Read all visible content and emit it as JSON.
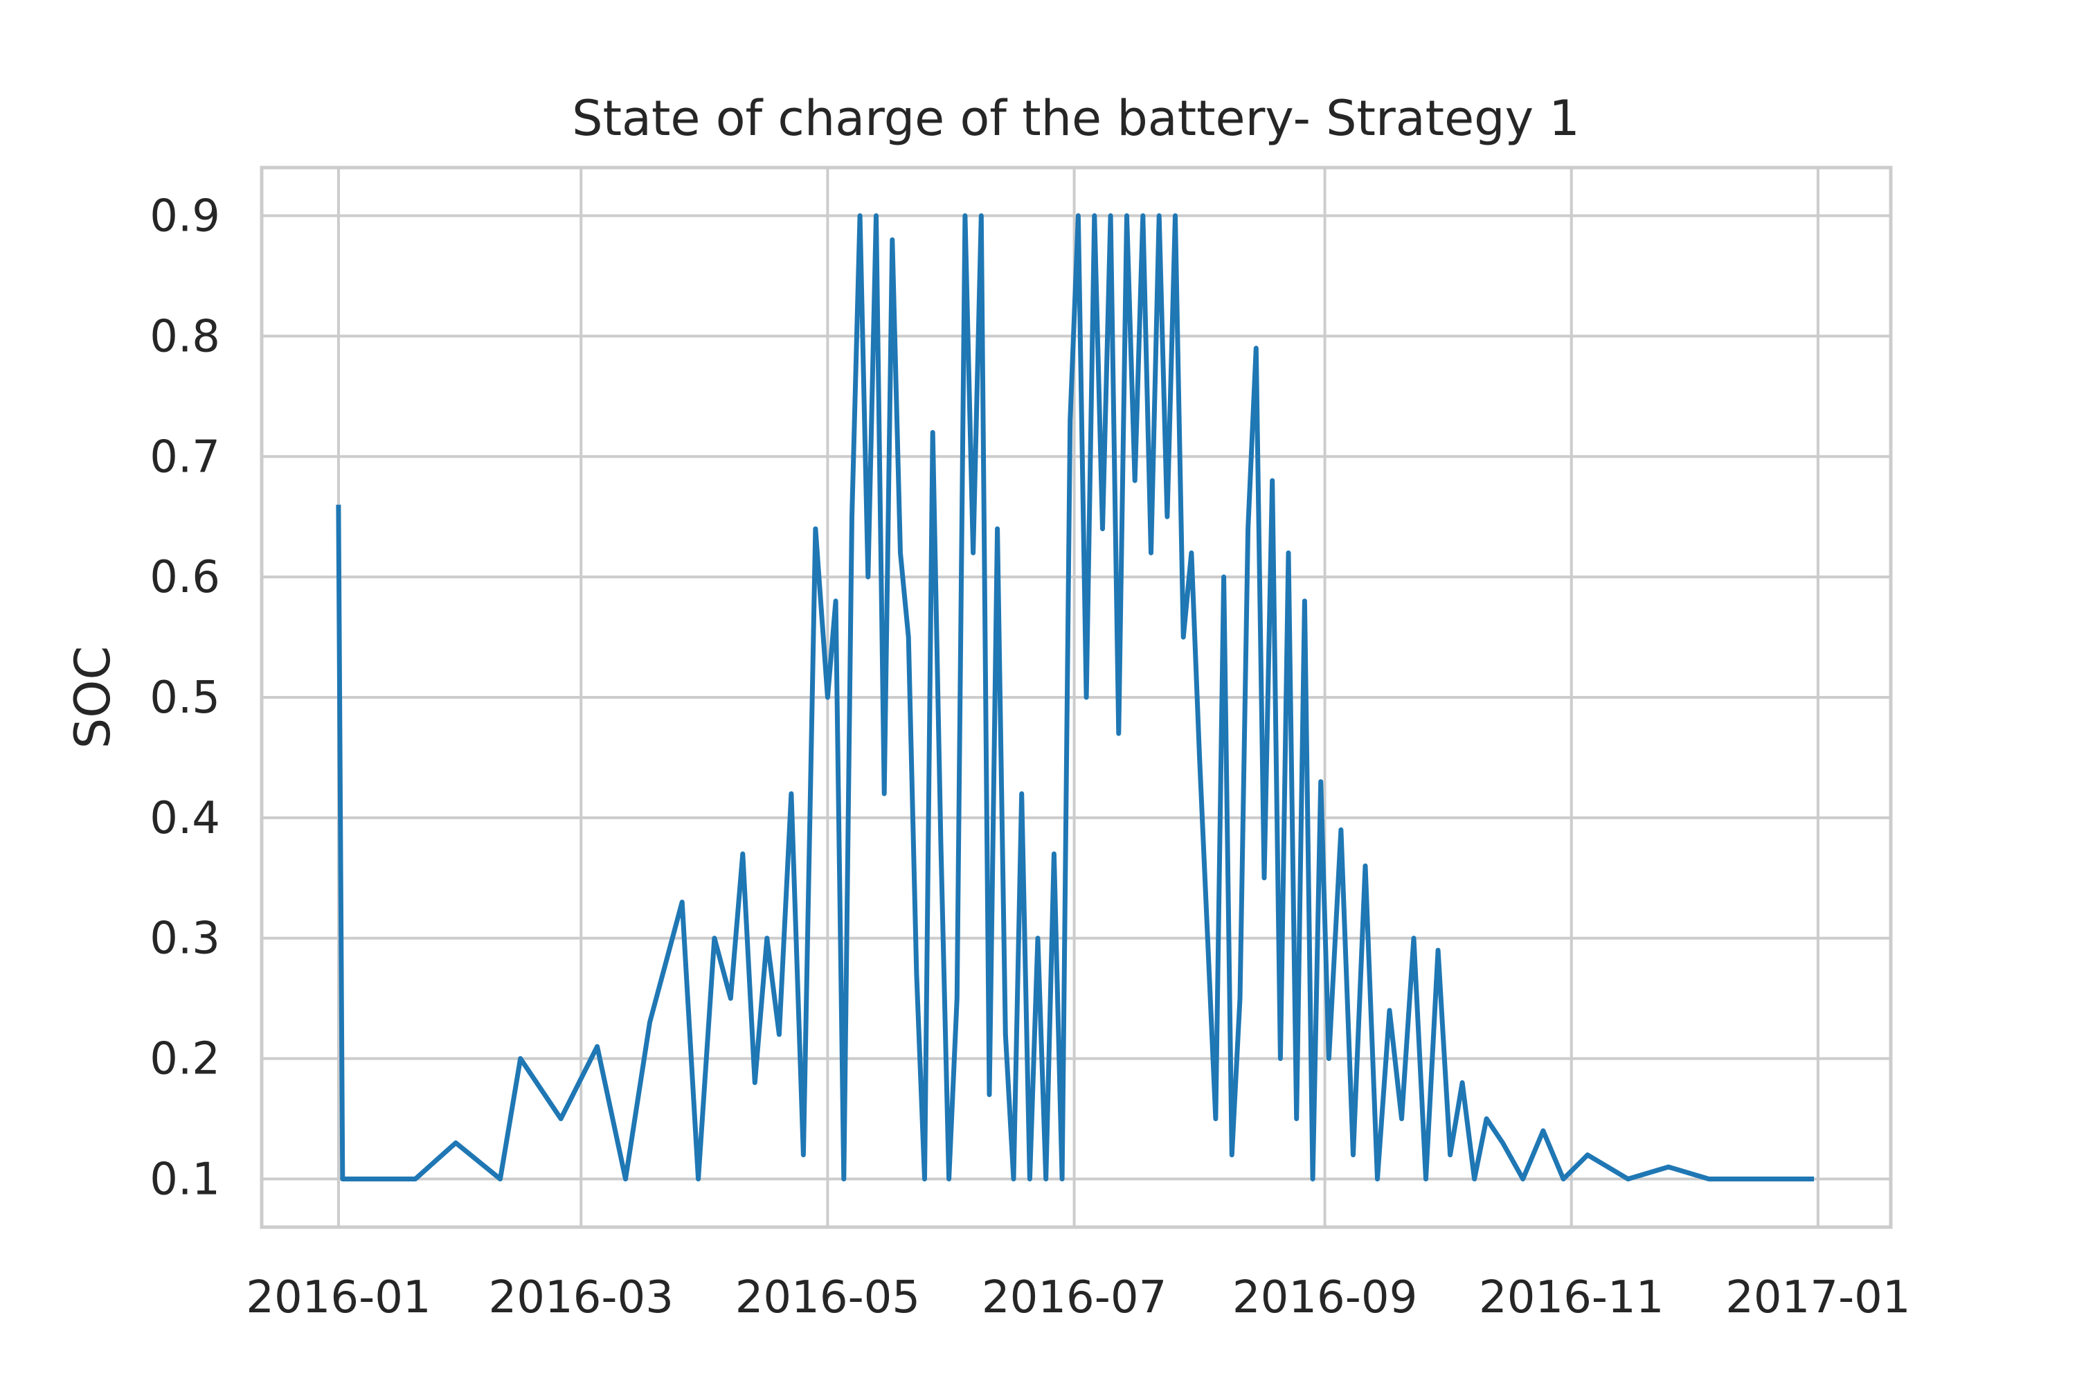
{
  "chart_data": {
    "type": "line",
    "title": "State of charge of the battery- Strategy 1",
    "xlabel": "",
    "ylabel": "SOC",
    "xlim": [
      "2015-12-13",
      "2017-01-19"
    ],
    "ylim": [
      0.06,
      0.94
    ],
    "x_ticks": [
      "2016-01",
      "2016-03",
      "2016-05",
      "2016-07",
      "2016-09",
      "2016-11",
      "2017-01"
    ],
    "y_ticks": [
      "0.1",
      "0.2",
      "0.3",
      "0.4",
      "0.5",
      "0.6",
      "0.7",
      "0.8",
      "0.9"
    ],
    "grid": true,
    "line_color": "#1f77b4",
    "series": [
      {
        "x": [
          "2016-01-01",
          "2016-01-02",
          "2016-01-10",
          "2016-01-20",
          "2016-01-30",
          "2016-02-10",
          "2016-02-15",
          "2016-02-25",
          "2016-03-05",
          "2016-03-12",
          "2016-03-18",
          "2016-03-22",
          "2016-03-26",
          "2016-03-30",
          "2016-04-03",
          "2016-04-07",
          "2016-04-10",
          "2016-04-13",
          "2016-04-16",
          "2016-04-19",
          "2016-04-22",
          "2016-04-25",
          "2016-04-28",
          "2016-05-01",
          "2016-05-03",
          "2016-05-05",
          "2016-05-07",
          "2016-05-09",
          "2016-05-11",
          "2016-05-13",
          "2016-05-15",
          "2016-05-17",
          "2016-05-19",
          "2016-05-21",
          "2016-05-23",
          "2016-05-25",
          "2016-05-27",
          "2016-05-29",
          "2016-05-31",
          "2016-06-02",
          "2016-06-04",
          "2016-06-06",
          "2016-06-08",
          "2016-06-10",
          "2016-06-12",
          "2016-06-14",
          "2016-06-16",
          "2016-06-18",
          "2016-06-20",
          "2016-06-22",
          "2016-06-24",
          "2016-06-26",
          "2016-06-28",
          "2016-06-30",
          "2016-07-02",
          "2016-07-04",
          "2016-07-06",
          "2016-07-08",
          "2016-07-10",
          "2016-07-12",
          "2016-07-14",
          "2016-07-16",
          "2016-07-18",
          "2016-07-20",
          "2016-07-22",
          "2016-07-24",
          "2016-07-26",
          "2016-07-28",
          "2016-07-30",
          "2016-08-01",
          "2016-08-03",
          "2016-08-05",
          "2016-08-07",
          "2016-08-09",
          "2016-08-11",
          "2016-08-13",
          "2016-08-15",
          "2016-08-17",
          "2016-08-19",
          "2016-08-21",
          "2016-08-23",
          "2016-08-25",
          "2016-08-27",
          "2016-08-29",
          "2016-08-31",
          "2016-09-02",
          "2016-09-05",
          "2016-09-08",
          "2016-09-11",
          "2016-09-14",
          "2016-09-17",
          "2016-09-20",
          "2016-09-23",
          "2016-09-26",
          "2016-09-29",
          "2016-10-02",
          "2016-10-05",
          "2016-10-08",
          "2016-10-11",
          "2016-10-15",
          "2016-10-20",
          "2016-10-25",
          "2016-10-30",
          "2016-11-05",
          "2016-11-15",
          "2016-11-25",
          "2016-12-05",
          "2016-12-15",
          "2016-12-31"
        ],
        "y": [
          0.66,
          0.1,
          0.1,
          0.1,
          0.13,
          0.1,
          0.2,
          0.15,
          0.21,
          0.1,
          0.23,
          0.28,
          0.33,
          0.1,
          0.3,
          0.25,
          0.37,
          0.18,
          0.3,
          0.22,
          0.42,
          0.12,
          0.64,
          0.5,
          0.58,
          0.1,
          0.65,
          0.9,
          0.6,
          0.9,
          0.42,
          0.88,
          0.62,
          0.55,
          0.27,
          0.1,
          0.72,
          0.38,
          0.1,
          0.25,
          0.9,
          0.62,
          0.9,
          0.17,
          0.64,
          0.22,
          0.1,
          0.42,
          0.1,
          0.3,
          0.1,
          0.37,
          0.1,
          0.73,
          0.9,
          0.5,
          0.9,
          0.64,
          0.9,
          0.47,
          0.9,
          0.68,
          0.9,
          0.62,
          0.9,
          0.65,
          0.9,
          0.55,
          0.62,
          0.45,
          0.3,
          0.15,
          0.6,
          0.12,
          0.25,
          0.64,
          0.79,
          0.35,
          0.68,
          0.2,
          0.62,
          0.15,
          0.58,
          0.1,
          0.43,
          0.2,
          0.39,
          0.12,
          0.36,
          0.1,
          0.24,
          0.15,
          0.3,
          0.1,
          0.29,
          0.12,
          0.18,
          0.1,
          0.15,
          0.13,
          0.1,
          0.14,
          0.1,
          0.12,
          0.1,
          0.11,
          0.1,
          0.1,
          0.1
        ]
      }
    ]
  }
}
